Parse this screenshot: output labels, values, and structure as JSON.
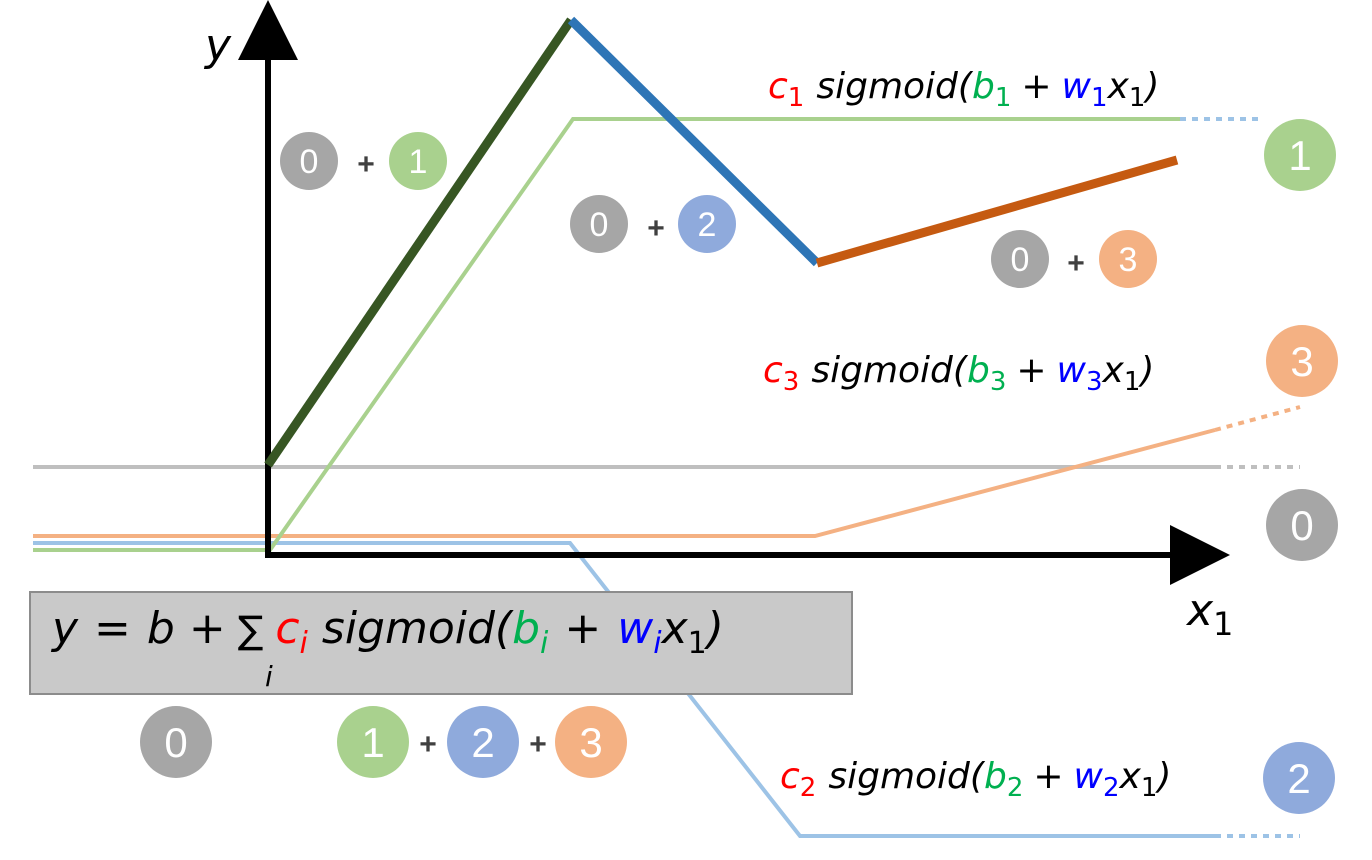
{
  "colors": {
    "gray": "#a6a6a6",
    "green": "#a9d18e",
    "blue": "#8faadc",
    "orange": "#f4b183",
    "dark_green": "#375623",
    "steel_blue": "#2e75b6",
    "rust": "#c55a11",
    "light_blue_line": "#9dc3e6",
    "red_text": "#ff0000",
    "green_text": "#00b050",
    "blue_text": "#0000ff",
    "box_fill": "#c9c9c9"
  },
  "axes": {
    "y_label": "y",
    "x_label": "x",
    "x_sub": "1"
  },
  "terms": {
    "t1": {
      "c": "c",
      "c_sub": "1",
      "sig": "sigmoid(",
      "b": "b",
      "b_sub": "1",
      "plus": "+",
      "w": "w",
      "w_sub": "1",
      "x": "x",
      "x_sub": "1",
      "close": ")"
    },
    "t2": {
      "c": "c",
      "c_sub": "2",
      "sig": "sigmoid(",
      "b": "b",
      "b_sub": "2",
      "plus": "+",
      "w": "w",
      "w_sub": "2",
      "x": "x",
      "x_sub": "1",
      "close": ")"
    },
    "t3": {
      "c": "c",
      "c_sub": "3",
      "sig": "sigmoid(",
      "b": "b",
      "b_sub": "3",
      "plus": "+",
      "w": "w",
      "w_sub": "3",
      "x": "x",
      "x_sub": "1",
      "close": ")"
    }
  },
  "formula": {
    "y": "y",
    "eq": "=",
    "b": "b",
    "plus1": "+",
    "sum": "∑",
    "sum_sub": "i",
    "c": "c",
    "c_sub": "i",
    "sig": "sigmoid(",
    "bi": "b",
    "bi_sub": "i",
    "plus2": "+",
    "w": "w",
    "w_sub": "i",
    "x": "x",
    "x_sub": "1",
    "close": ")"
  },
  "badges": {
    "zero": "0",
    "one": "1",
    "two": "2",
    "three": "3",
    "plus": "+"
  }
}
